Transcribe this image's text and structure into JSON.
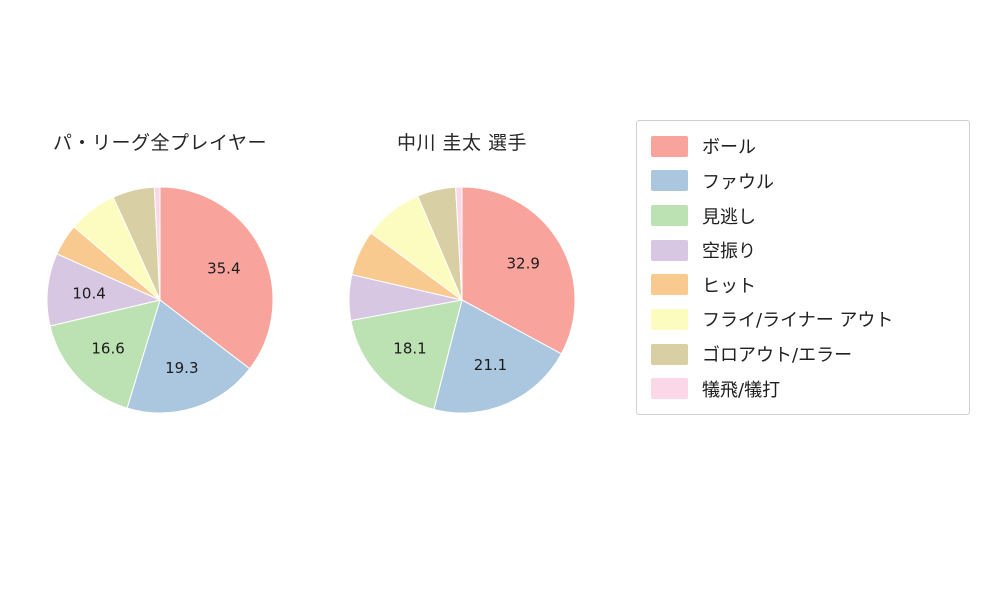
{
  "chart_data": [
    {
      "type": "pie",
      "title": "パ・リーグ全プレイヤー",
      "categories": [
        "ボール",
        "ファウル",
        "見逃し",
        "空振り",
        "ヒット",
        "フライ/ライナー アウト",
        "ゴロアウト/エラー",
        "犠飛/犠打"
      ],
      "values": [
        35.4,
        19.3,
        16.6,
        10.4,
        4.5,
        7.0,
        6.0,
        0.8
      ],
      "colors": [
        "#f8a49d",
        "#abc7df",
        "#bce2b4",
        "#d8c7e2",
        "#f9ca90",
        "#fdfcc0",
        "#d9cfa5",
        "#fbd7e8"
      ],
      "start_angle_deg": 90,
      "direction": "clockwise",
      "label_threshold_pct": 10,
      "shown_value_labels": [
        35.4,
        19.3,
        16.6,
        10.4
      ]
    },
    {
      "type": "pie",
      "title": "中川 圭太  選手",
      "categories": [
        "ボール",
        "ファウル",
        "見逃し",
        "空振り",
        "ヒット",
        "フライ/ライナー アウト",
        "ゴロアウト/エラー",
        "犠飛/犠打"
      ],
      "values": [
        32.9,
        21.1,
        18.1,
        6.5,
        6.5,
        8.5,
        5.5,
        0.9
      ],
      "colors": [
        "#f8a49d",
        "#abc7df",
        "#bce2b4",
        "#d8c7e2",
        "#f9ca90",
        "#fdfcc0",
        "#d9cfa5",
        "#fbd7e8"
      ],
      "start_angle_deg": 90,
      "direction": "clockwise",
      "label_threshold_pct": 10,
      "shown_value_labels": [
        32.9,
        21.1,
        18.1
      ]
    }
  ],
  "legend": {
    "position": "right",
    "items": [
      {
        "label": "ボール",
        "color": "#f8a49d"
      },
      {
        "label": "ファウル",
        "color": "#abc7df"
      },
      {
        "label": "見逃し",
        "color": "#bce2b4"
      },
      {
        "label": "空振り",
        "color": "#d8c7e2"
      },
      {
        "label": "ヒット",
        "color": "#f9ca90"
      },
      {
        "label": "フライ/ライナー アウト",
        "color": "#fdfcc0"
      },
      {
        "label": "ゴロアウト/エラー",
        "color": "#d9cfa5"
      },
      {
        "label": "犠飛/犠打",
        "color": "#fbd7e8"
      }
    ]
  }
}
